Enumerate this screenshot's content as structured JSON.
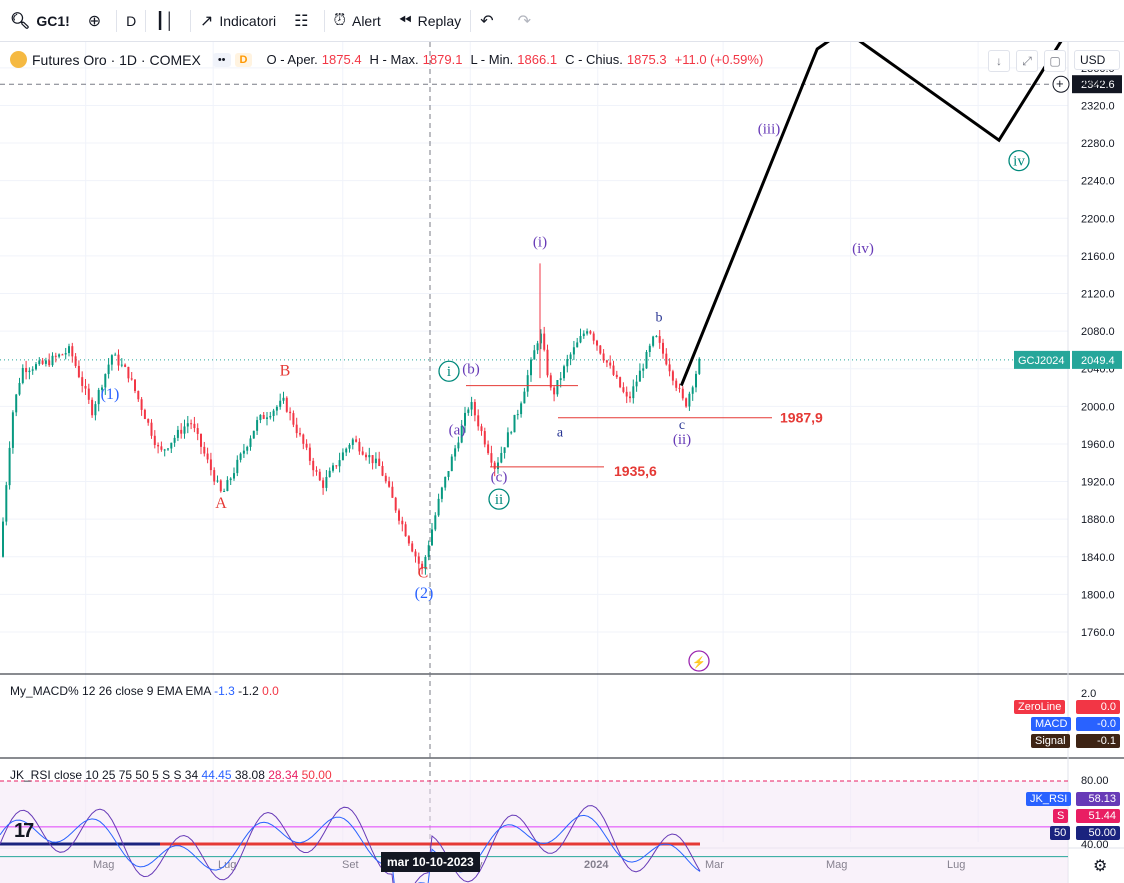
{
  "toolbar": {
    "symbol": "GC1!",
    "interval": "D",
    "indicators_label": "Indicatori",
    "alert_label": "Alert",
    "replay_label": "Replay",
    "icons": [
      "search-icon",
      "add-symbol-icon",
      "bar-style-icon",
      "indicators-icon",
      "layout-icon",
      "alert-icon",
      "replay-icon",
      "undo-icon",
      "redo-icon"
    ]
  },
  "legend": {
    "title": "Futures Oro · 1D · COMEX",
    "interval_badge": "D",
    "open_label": "O - Aper.",
    "open": "1875.4",
    "high_label": "H - Max.",
    "high": "1879.1",
    "low_label": "L - Min.",
    "low": "1866.1",
    "close_label": "C - Chius.",
    "close": "1875.3",
    "change": "+11.0 (+0.59%)"
  },
  "price_axis": {
    "currency": "USD",
    "scale_mode": "apoz",
    "ticks": [
      "2360.0",
      "2320.0",
      "2280.0",
      "2240.0",
      "2200.0",
      "2160.0",
      "2120.0",
      "2080.0",
      "2040.0",
      "2000.0",
      "1960.0",
      "1920.0",
      "1880.0",
      "1840.0",
      "1800.0",
      "1760.0"
    ],
    "crosshair_price": "2342.6",
    "last_symbol": "GCJ2024",
    "last_price": "2049.4"
  },
  "time_axis": {
    "labels": [
      "Mag",
      "Lug",
      "Set",
      "2024",
      "Mar",
      "Mag",
      "Lug"
    ],
    "crosshair_date": "mar 10-10-2023",
    "partial_label": "v"
  },
  "annotations": {
    "wave_labels": [
      "(1)",
      "B",
      "A",
      "C",
      "(2)",
      "i",
      "(b)",
      "(a)",
      "(c)",
      "ii",
      "(i)",
      "a",
      "b",
      "c",
      "(ii)",
      "(iii)",
      "(iv)",
      "iv"
    ],
    "levels": [
      "1987,9",
      "1935,6"
    ]
  },
  "macd": {
    "name": "My_MACD%",
    "params": "12 26 close 9 EMA EMA",
    "v1": "-1.3",
    "v2": "-1.2",
    "v3": "0.0",
    "axis_top": "2.0",
    "zero_label": "ZeroLine",
    "zero_value": "0.0",
    "macd_label": "MACD",
    "macd_value": "-0.0",
    "signal_label": "Signal",
    "signal_value": "-0.1",
    "colors": {
      "macd": "#2962ff",
      "signal": "#5d3a1a",
      "zero_up": "#f23645",
      "zero_dn": "#26a69a"
    }
  },
  "rsi": {
    "name": "JK_RSI",
    "params": "close 10 25 75 50 5 S S 34",
    "v1": "44.45",
    "v2": "38.08",
    "v3": "28.34",
    "v4": "50.00",
    "axis_top": "80.00",
    "rsi_label": "JK_RSI",
    "rsi_value": "58.13",
    "s_label": "S",
    "s_value": "51.44",
    "mid_label": "50",
    "mid_value": "50.00",
    "bottom_value": "40.00"
  },
  "chart_data": {
    "type": "candlestick",
    "title": "Futures Oro · 1D · COMEX",
    "ylim": [
      1760,
      2370
    ],
    "x_start": "2023-03-21",
    "x_end": "2024-08-13",
    "ohlc_last": {
      "open": 1875.4,
      "high": 1879.1,
      "low": 1866.1,
      "close": 1875.3
    },
    "projection": [
      [
        "2024-02-10",
        2022
      ],
      [
        "2024-04-15",
        2380
      ],
      [
        "2024-04-28",
        2400
      ],
      [
        "2024-07-11",
        2283
      ],
      [
        "2024-08-13",
        2400
      ]
    ],
    "horizontal_levels": [
      {
        "label": "1987,9",
        "value": 1987.9
      },
      {
        "label": "1935,6",
        "value": 1935.6
      }
    ],
    "current_price_line": 2049.4,
    "crosshair_line": 2342.6,
    "colors": {
      "up": "#089981",
      "down": "#f23645",
      "wave_blue": "#2962ff",
      "wave_red": "#e53935",
      "wave_purple": "#673ab7",
      "wave_teal": "#00897b",
      "grid": "#f0f3fa"
    }
  }
}
